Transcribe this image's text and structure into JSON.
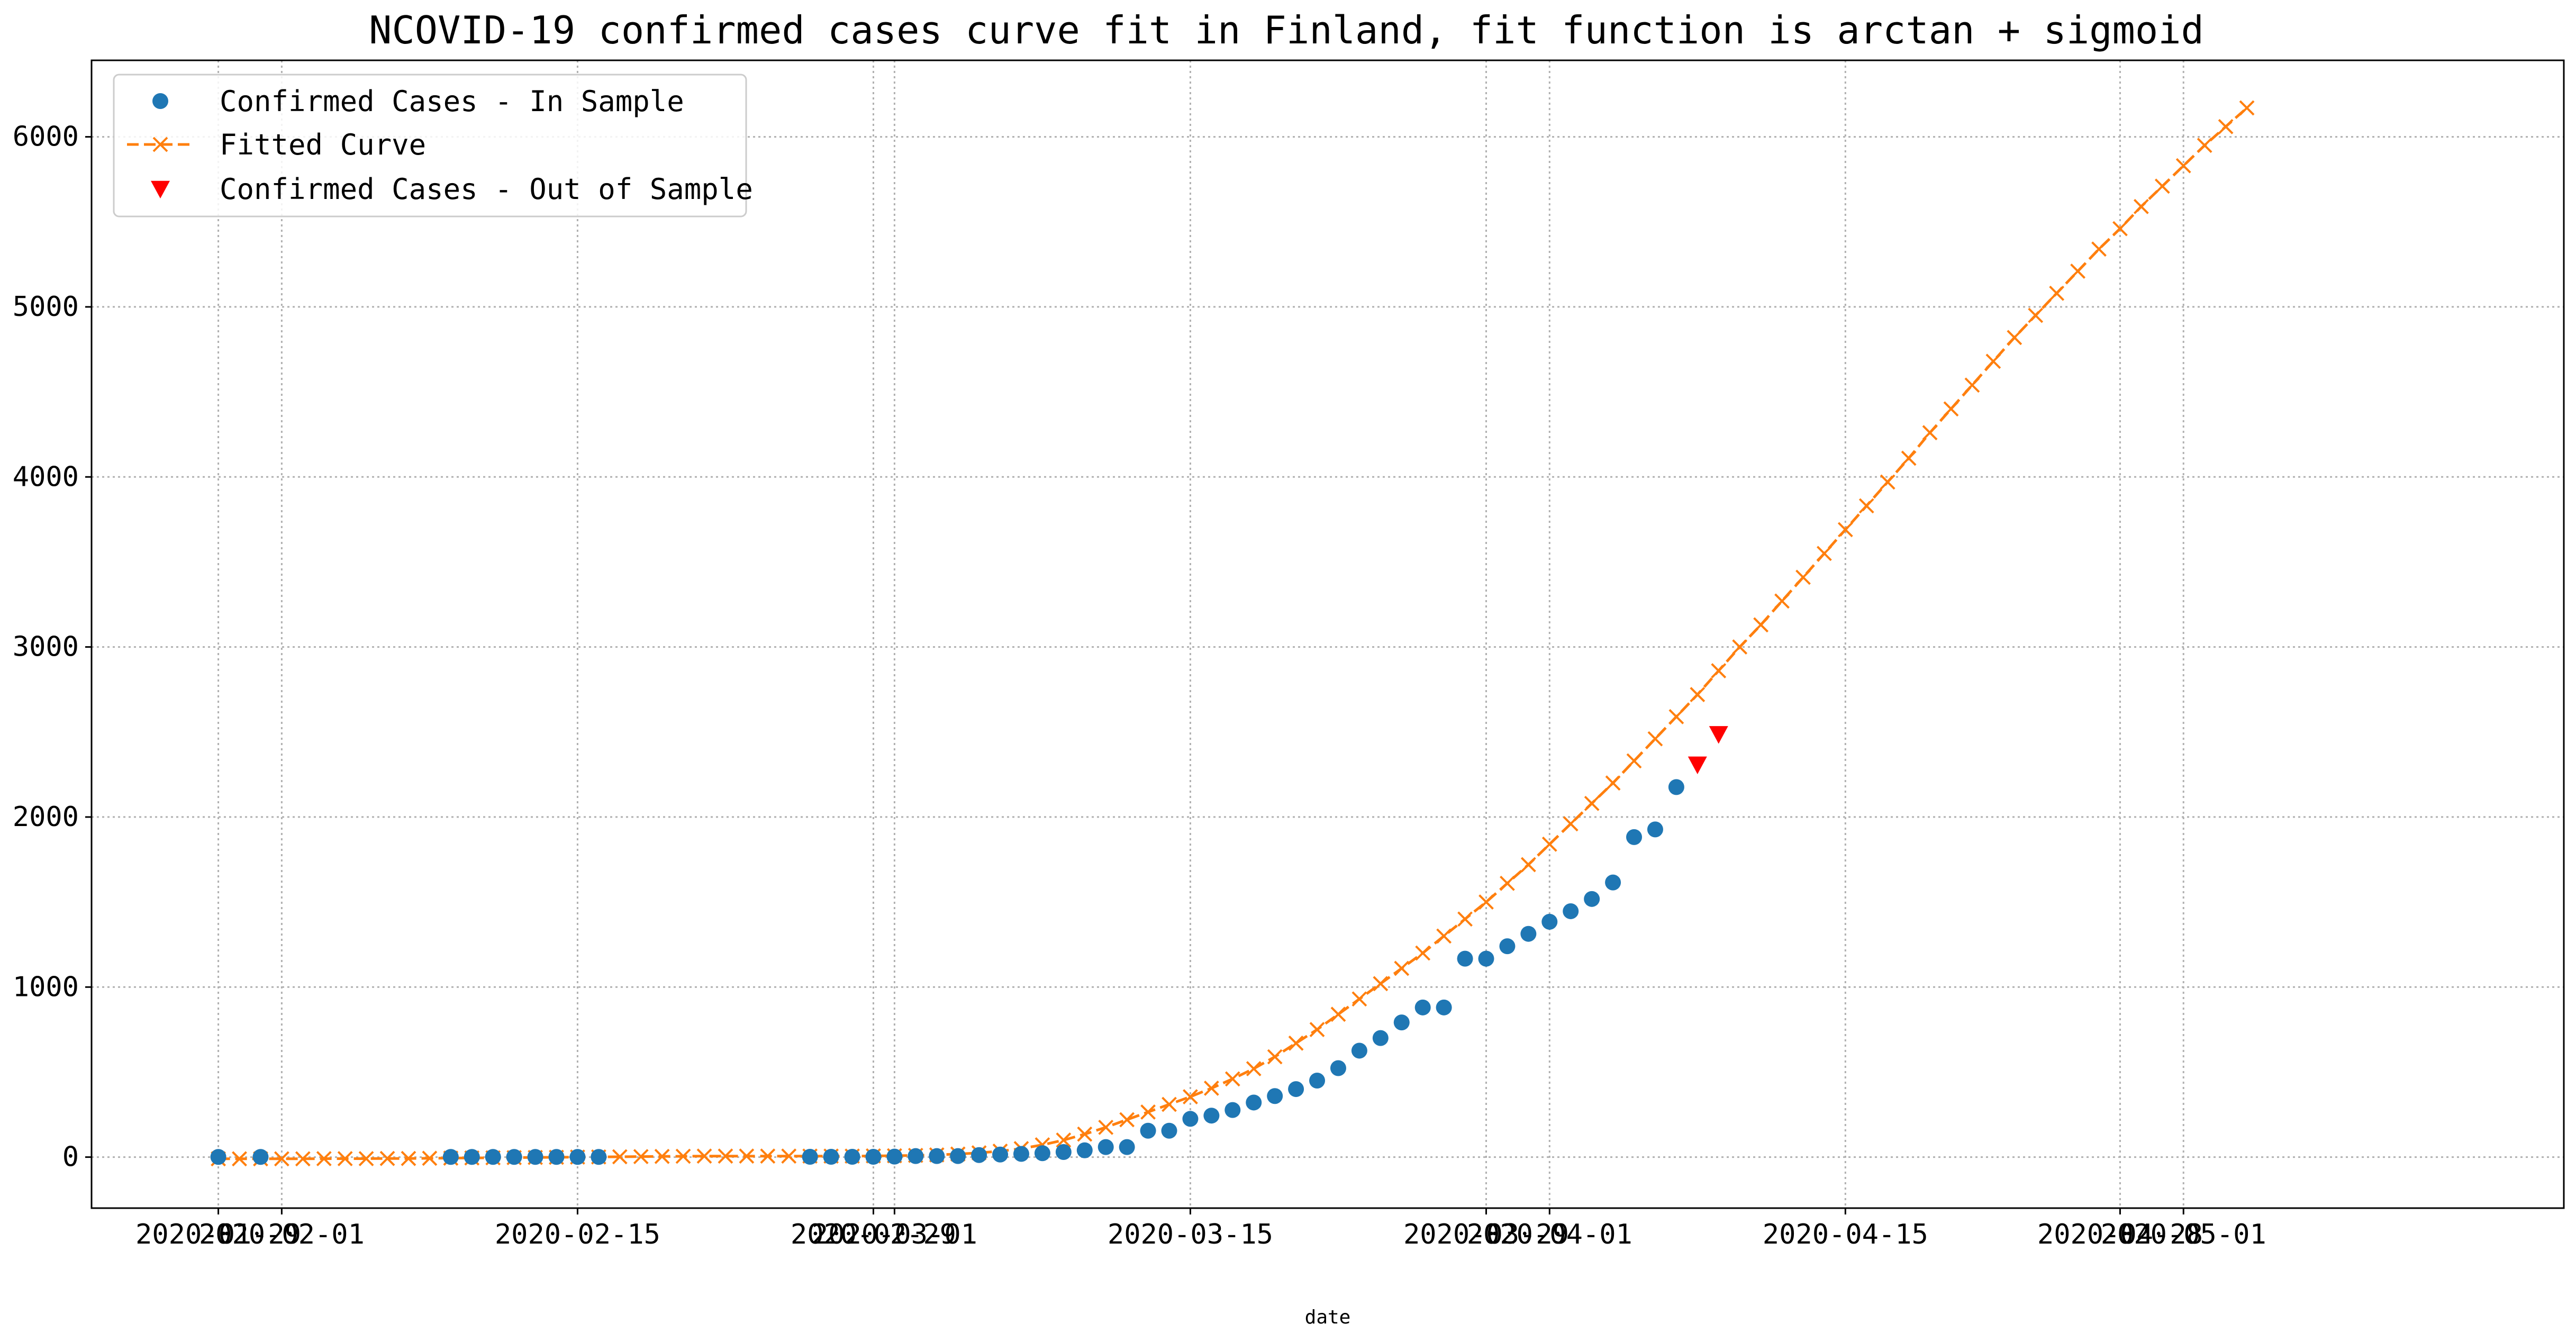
{
  "chart_data": {
    "type": "line",
    "title": "NCOVID-19 confirmed cases curve fit in Finland, fit function is arctan + sigmoid",
    "xlabel": "date",
    "ylabel": "",
    "x_axis": "date",
    "xlim": [
      "2020-01-23",
      "2020-05-19"
    ],
    "ylim": [
      -300,
      6450
    ],
    "grid": true,
    "legend_position": "top-left",
    "x_ticks": [
      {
        "date": "2020-01-29",
        "label": "2020-01-29"
      },
      {
        "date": "2020-02-01",
        "label": "2020-02-01"
      },
      {
        "date": "2020-02-15",
        "label": "2020-02-15"
      },
      {
        "date": "2020-02-29",
        "label": "2020-02-29"
      },
      {
        "date": "2020-03-01",
        "label": "2020-03-01"
      },
      {
        "date": "2020-03-15",
        "label": "2020-03-15"
      },
      {
        "date": "2020-03-29",
        "label": "2020-03-29"
      },
      {
        "date": "2020-04-01",
        "label": "2020-04-01"
      },
      {
        "date": "2020-04-15",
        "label": "2020-04-15"
      },
      {
        "date": "2020-04-28",
        "label": "2020-04-28"
      },
      {
        "date": "2020-05-01",
        "label": "2020-05-01"
      }
    ],
    "y_ticks": [
      0,
      1000,
      2000,
      3000,
      4000,
      5000,
      6000
    ],
    "series": [
      {
        "name": "Confirmed Cases - In Sample",
        "style": "dots",
        "color": "#1f77b4",
        "points": [
          {
            "x": "2020-01-29",
            "y": 1
          },
          {
            "x": "2020-01-31",
            "y": 1
          },
          {
            "x": "2020-02-09",
            "y": 1
          },
          {
            "x": "2020-02-10",
            "y": 1
          },
          {
            "x": "2020-02-11",
            "y": 1
          },
          {
            "x": "2020-02-12",
            "y": 1
          },
          {
            "x": "2020-02-13",
            "y": 1
          },
          {
            "x": "2020-02-14",
            "y": 1
          },
          {
            "x": "2020-02-15",
            "y": 1
          },
          {
            "x": "2020-02-16",
            "y": 1
          },
          {
            "x": "2020-02-26",
            "y": 2
          },
          {
            "x": "2020-02-27",
            "y": 2
          },
          {
            "x": "2020-02-28",
            "y": 2
          },
          {
            "x": "2020-02-29",
            "y": 2
          },
          {
            "x": "2020-03-01",
            "y": 3
          },
          {
            "x": "2020-03-02",
            "y": 6
          },
          {
            "x": "2020-03-03",
            "y": 6
          },
          {
            "x": "2020-03-04",
            "y": 6
          },
          {
            "x": "2020-03-05",
            "y": 12
          },
          {
            "x": "2020-03-06",
            "y": 15
          },
          {
            "x": "2020-03-07",
            "y": 19
          },
          {
            "x": "2020-03-08",
            "y": 23
          },
          {
            "x": "2020-03-09",
            "y": 30
          },
          {
            "x": "2020-03-10",
            "y": 40
          },
          {
            "x": "2020-03-11",
            "y": 59
          },
          {
            "x": "2020-03-12",
            "y": 59
          },
          {
            "x": "2020-03-13",
            "y": 155
          },
          {
            "x": "2020-03-14",
            "y": 155
          },
          {
            "x": "2020-03-15",
            "y": 225
          },
          {
            "x": "2020-03-16",
            "y": 244
          },
          {
            "x": "2020-03-17",
            "y": 277
          },
          {
            "x": "2020-03-18",
            "y": 321
          },
          {
            "x": "2020-03-19",
            "y": 359
          },
          {
            "x": "2020-03-20",
            "y": 400
          },
          {
            "x": "2020-03-21",
            "y": 450
          },
          {
            "x": "2020-03-22",
            "y": 523
          },
          {
            "x": "2020-03-23",
            "y": 626
          },
          {
            "x": "2020-03-24",
            "y": 700
          },
          {
            "x": "2020-03-25",
            "y": 792
          },
          {
            "x": "2020-03-26",
            "y": 880
          },
          {
            "x": "2020-03-27",
            "y": 880
          },
          {
            "x": "2020-03-28",
            "y": 1167
          },
          {
            "x": "2020-03-29",
            "y": 1167
          },
          {
            "x": "2020-03-30",
            "y": 1240
          },
          {
            "x": "2020-03-31",
            "y": 1313
          },
          {
            "x": "2020-04-01",
            "y": 1384
          },
          {
            "x": "2020-04-02",
            "y": 1446
          },
          {
            "x": "2020-04-03",
            "y": 1518
          },
          {
            "x": "2020-04-04",
            "y": 1615
          },
          {
            "x": "2020-04-05",
            "y": 1882
          },
          {
            "x": "2020-04-06",
            "y": 1927
          },
          {
            "x": "2020-04-07",
            "y": 2176
          }
        ]
      },
      {
        "name": "Fitted Curve",
        "style": "dashed-x",
        "color": "#ff7f0e",
        "start_date": "2020-01-29",
        "end_date": "2020-05-08",
        "values": [
          -10,
          -10,
          -10,
          -10,
          -10,
          -9,
          -9,
          -9,
          -8,
          -8,
          -7,
          -6,
          -5,
          -4,
          -3,
          -2,
          -1,
          0,
          1,
          2,
          3,
          4,
          5,
          6,
          6,
          6,
          6,
          6,
          6,
          6,
          6,
          7,
          8,
          10,
          13,
          18,
          25,
          35,
          50,
          72,
          100,
          135,
          175,
          220,
          265,
          310,
          355,
          405,
          460,
          520,
          590,
          670,
          750,
          840,
          930,
          1020,
          1110,
          1200,
          1300,
          1400,
          1500,
          1610,
          1720,
          1840,
          1960,
          2080,
          2200,
          2330,
          2460,
          2590,
          2720,
          2860,
          3000,
          3130,
          3270,
          3410,
          3550,
          3690,
          3830,
          3970,
          4110,
          4260,
          4400,
          4540,
          4680,
          4820,
          4950,
          5080,
          5210,
          5340,
          5460,
          5590,
          5710,
          5830,
          5950,
          6060,
          6170
        ]
      },
      {
        "name": "Confirmed Cases - Out of Sample",
        "style": "triangles",
        "color": "#ff0000",
        "points": [
          {
            "x": "2020-04-08",
            "y": 2308
          },
          {
            "x": "2020-04-09",
            "y": 2487
          }
        ]
      }
    ]
  }
}
